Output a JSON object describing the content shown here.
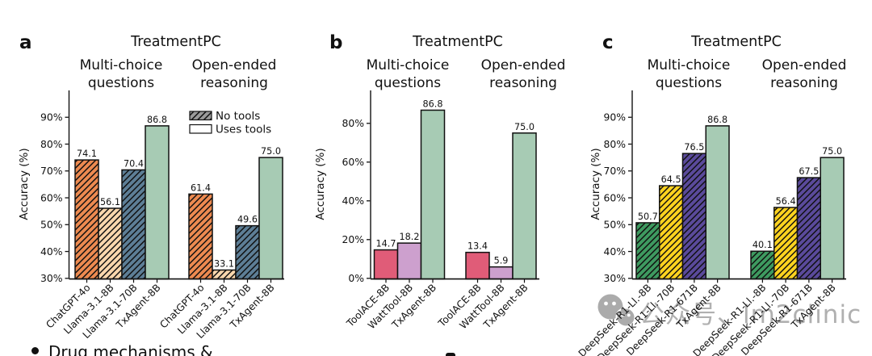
{
  "watermark": {
    "icon": "wechat-icon",
    "text": "公众号、lm2clinic"
  },
  "bottom_caption": {
    "text": "Drug mechanisms &"
  },
  "chart_data": [
    {
      "panel_label": "a",
      "type": "bar",
      "title": "TreatmentPC",
      "ylabel": "Accuracy (%)",
      "ylim": [
        30,
        100
      ],
      "yticks": [
        30,
        40,
        50,
        60,
        70,
        80,
        90
      ],
      "ytick_suffix": "%",
      "grid": false,
      "legend": {
        "position": "upper-right",
        "items": [
          {
            "label": "No tools",
            "swatch": "hatched",
            "swatch_color": "#9a9a9a"
          },
          {
            "label": "Uses tools",
            "swatch": "plain",
            "swatch_color": "#ffffff"
          }
        ]
      },
      "models": [
        {
          "name": "ChatGPT-4o",
          "color": "#ED8A50",
          "hatch": true
        },
        {
          "name": "Llama-3.1-8B",
          "color": "#F9D7AD",
          "hatch": true
        },
        {
          "name": "Llama-3.1-70B",
          "color": "#5D7E96",
          "hatch": true
        },
        {
          "name": "TxAgent-8B",
          "color": "#A7CBB4",
          "hatch": false
        }
      ],
      "groups": [
        {
          "label": [
            "Multi-choice",
            "questions"
          ],
          "values": [
            74.1,
            56.1,
            70.4,
            86.8
          ]
        },
        {
          "label": [
            "Open-ended",
            "reasoning"
          ],
          "values": [
            61.4,
            33.1,
            49.6,
            75.0
          ]
        }
      ]
    },
    {
      "panel_label": "b",
      "type": "bar",
      "title": "TreatmentPC",
      "ylabel": "Accuracy (%)",
      "ylim": [
        0,
        97
      ],
      "yticks": [
        0,
        20,
        40,
        60,
        80
      ],
      "ytick_suffix": "%",
      "grid": false,
      "legend": null,
      "models": [
        {
          "name": "ToolACE-8B",
          "color": "#E05C78",
          "hatch": false
        },
        {
          "name": "WattTool-8B",
          "color": "#CDA0CE",
          "hatch": false
        },
        {
          "name": "TxAgent-8B",
          "color": "#A7CBB4",
          "hatch": false
        }
      ],
      "groups": [
        {
          "label": [
            "Multi-choice",
            "questions"
          ],
          "values": [
            14.7,
            18.2,
            86.8
          ]
        },
        {
          "label": [
            "Open-ended",
            "reasoning"
          ],
          "values": [
            13.4,
            5.9,
            75.0
          ]
        }
      ]
    },
    {
      "panel_label": "c",
      "type": "bar",
      "title": "TreatmentPC",
      "ylabel": "Accuracy (%)",
      "ylim": [
        30,
        100
      ],
      "yticks": [
        30,
        40,
        50,
        60,
        70,
        80,
        90
      ],
      "ytick_suffix": "%",
      "grid": false,
      "legend": null,
      "models": [
        {
          "name": "DeepSeek-R1-Ll.-8B",
          "color": "#3E9A60",
          "hatch": true
        },
        {
          "name": "DeepSeek-R1-Ll.-70B",
          "color": "#FFD31F",
          "hatch": true
        },
        {
          "name": "DeepSeek-R1-671B",
          "color": "#5A4A9B",
          "hatch": true
        },
        {
          "name": "TxAgent-8B",
          "color": "#A7CBB4",
          "hatch": false
        }
      ],
      "groups": [
        {
          "label": [
            "Multi-choice",
            "questions"
          ],
          "values": [
            50.7,
            64.5,
            76.5,
            86.8
          ]
        },
        {
          "label": [
            "Open-ended",
            "reasoning"
          ],
          "values": [
            40.1,
            56.4,
            67.5,
            75.0
          ]
        }
      ]
    }
  ]
}
